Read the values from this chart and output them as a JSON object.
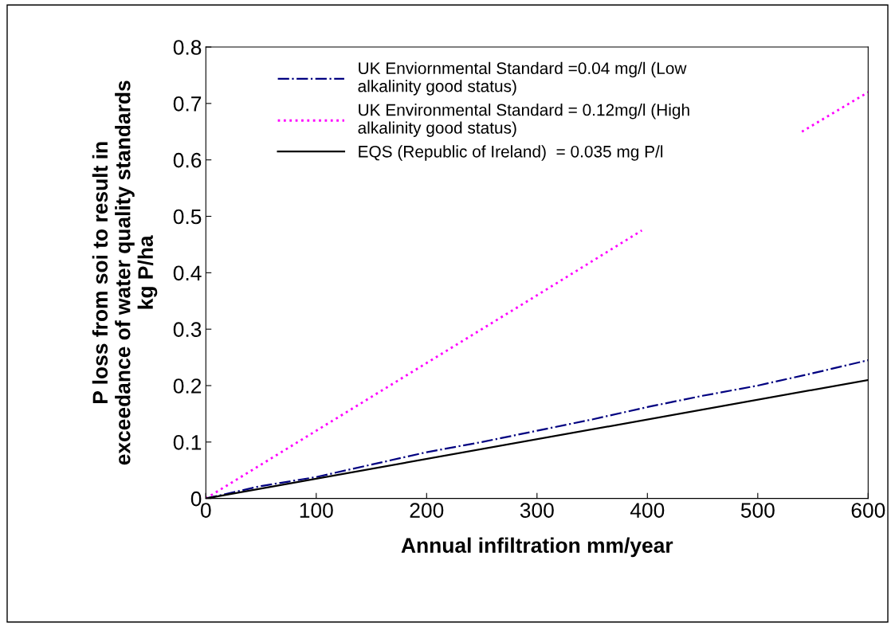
{
  "chart_data": {
    "type": "line",
    "xlabel": "Annual infiltration mm/year",
    "ylabel": "P loss from soi to result in\nexceedance of water quality standards\nkg P/ha",
    "xlim": [
      0,
      600
    ],
    "xticks": [
      0,
      100,
      200,
      300,
      400,
      500,
      600
    ],
    "ylim": [
      0,
      0.8
    ],
    "yticks": [
      0,
      0.1,
      0.2,
      0.3,
      0.4,
      0.5,
      0.6,
      0.7,
      0.8
    ],
    "grid": false,
    "legend": "top",
    "marker": "none",
    "series": [
      {
        "name": "UK Enviornmental Standard =0.04 mg/l (Low\nalkalinity good status)",
        "color": "#000080",
        "line_style": "dashdot",
        "x": [
          0,
          50,
          100,
          150,
          200,
          250,
          300,
          350,
          400,
          450,
          500,
          550,
          600
        ],
        "values": [
          0,
          0.022,
          0.038,
          0.06,
          0.082,
          0.1,
          0.12,
          0.14,
          0.162,
          0.182,
          0.2,
          0.222,
          0.245
        ]
      },
      {
        "name": "UK Environmental Standard = 0.12mg/l (High\nalkalinity good status)",
        "color": "#ff00ff",
        "line_style": "dotted",
        "x": [
          0,
          100,
          200,
          300,
          395,
          470,
          540,
          600
        ],
        "values": [
          0,
          0.12,
          0.24,
          0.36,
          0.475,
          null,
          0.65,
          0.72
        ]
      },
      {
        "name": "EQS (Republic of Ireland)  = 0.035 mg P/l",
        "color": "#000000",
        "line_style": "solid",
        "x": [
          0,
          600
        ],
        "values": [
          0,
          0.21
        ]
      }
    ]
  }
}
